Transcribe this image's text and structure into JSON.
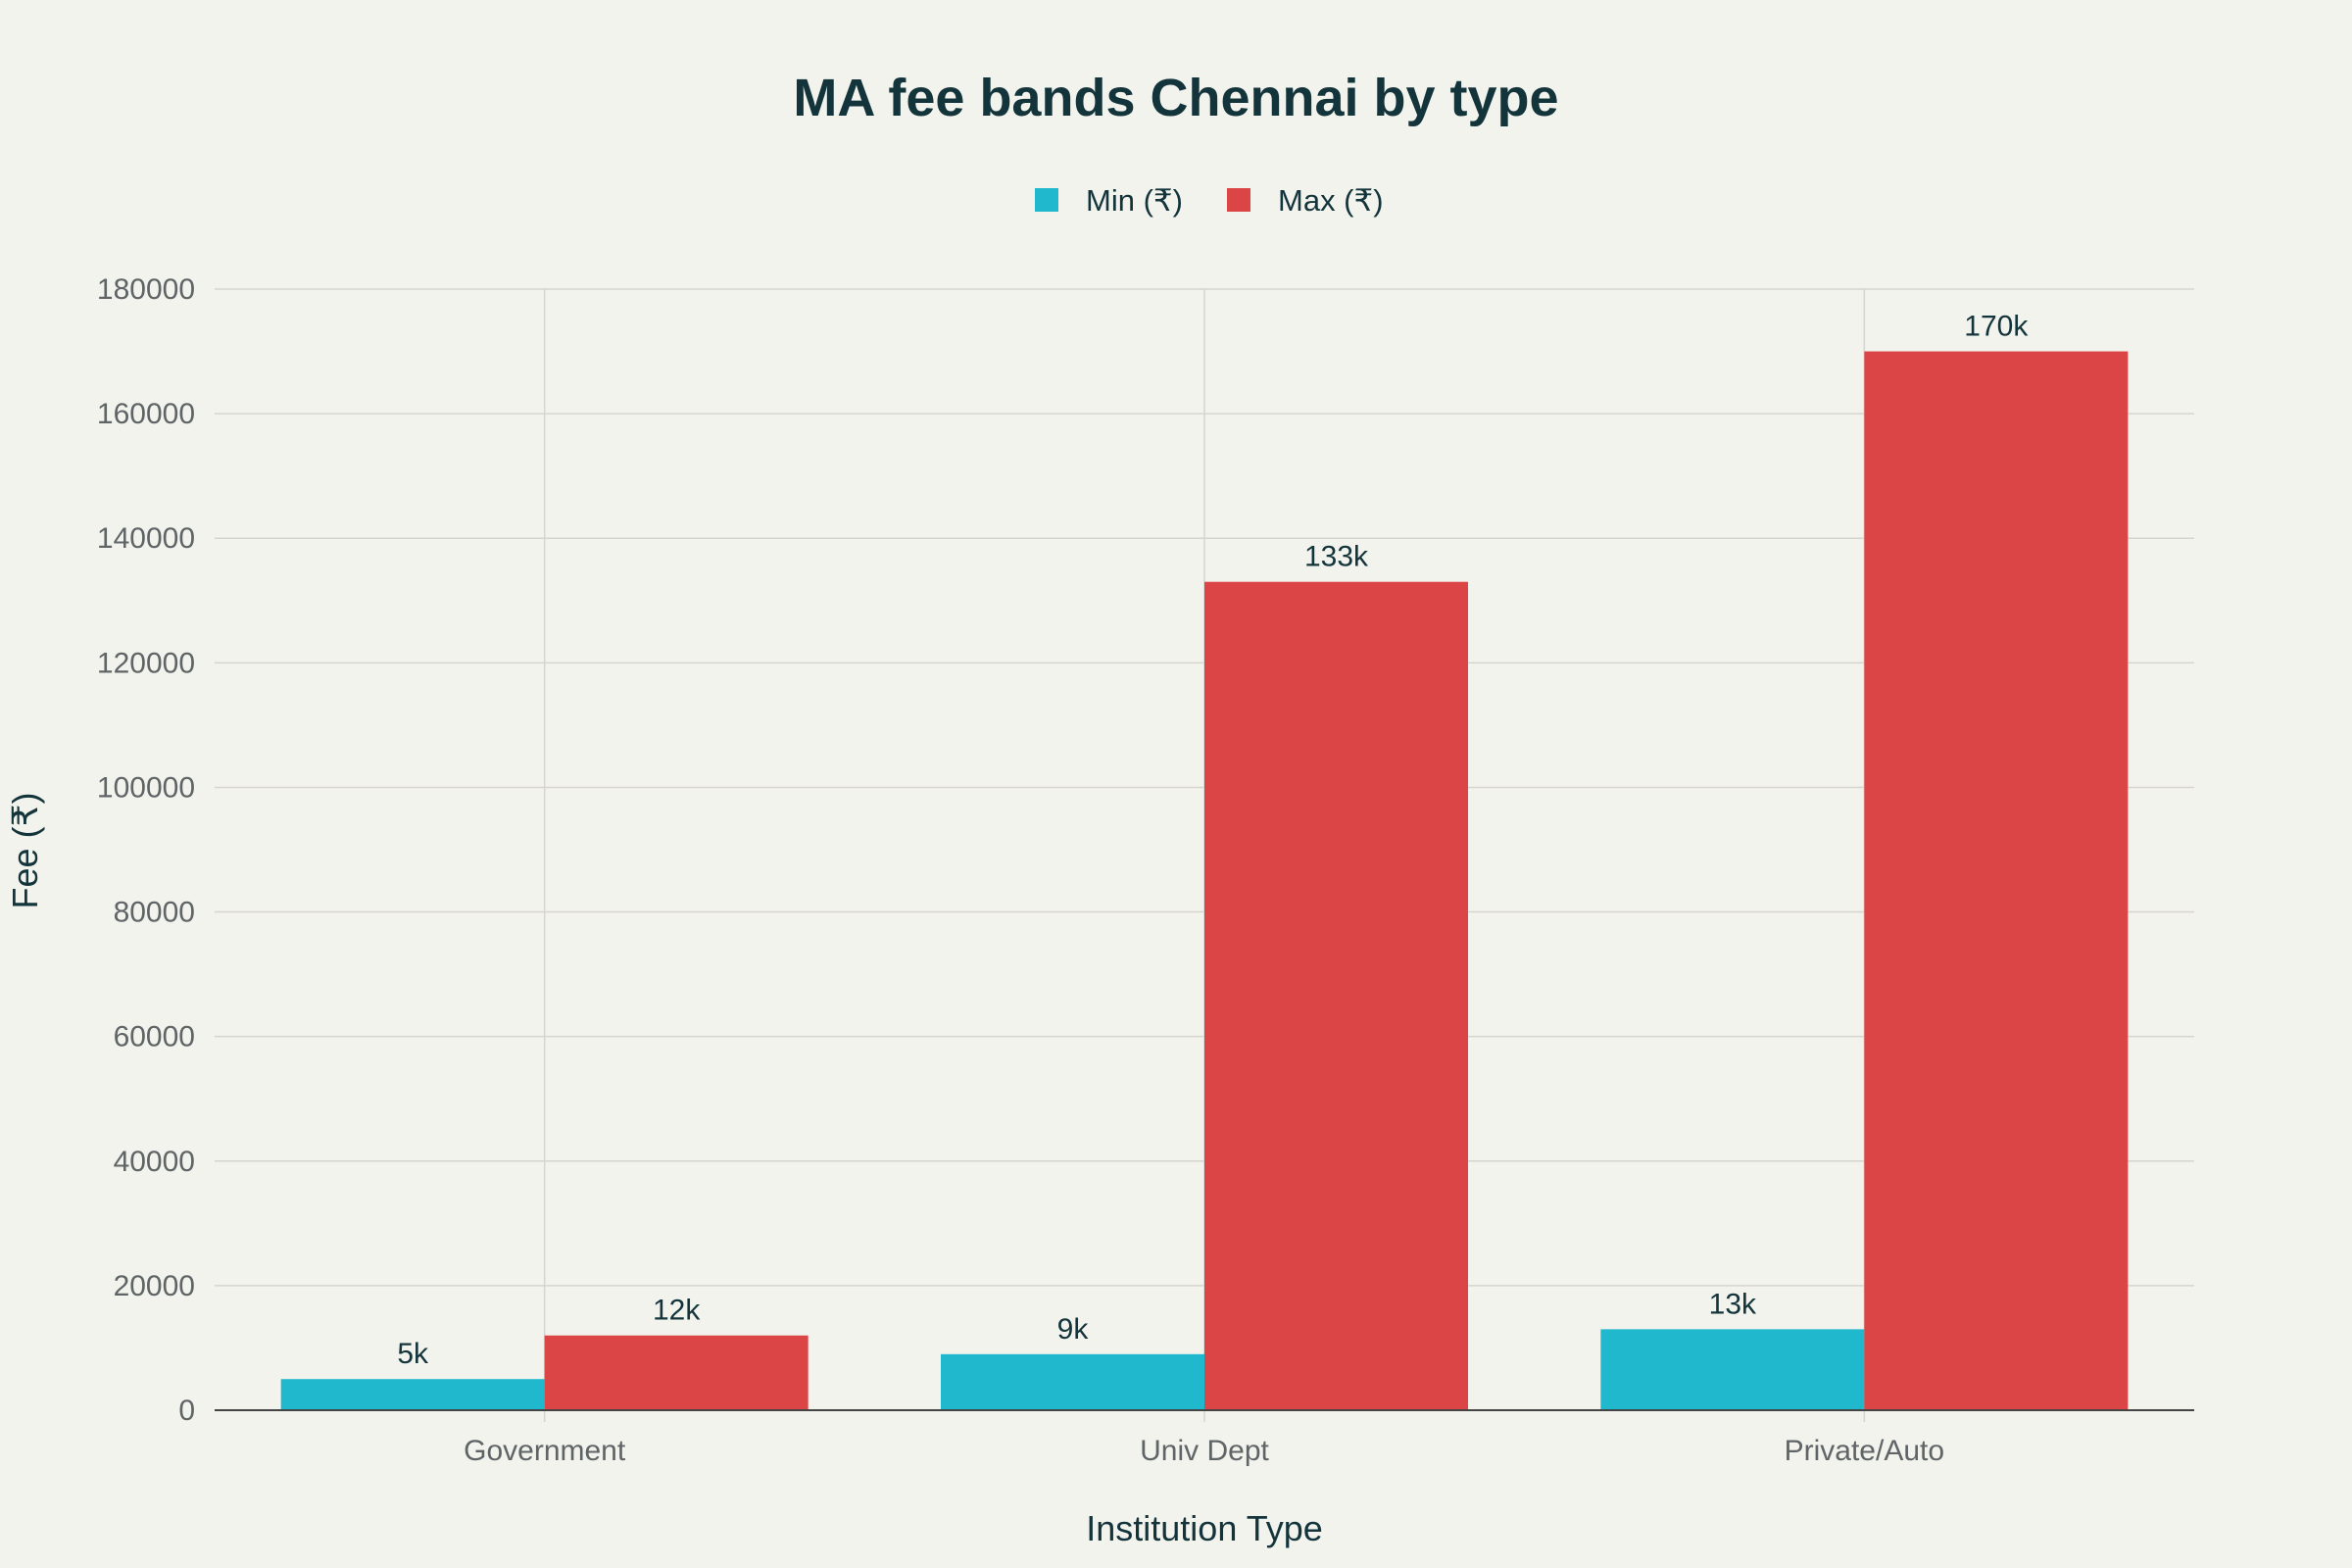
{
  "chart_data": {
    "type": "bar",
    "title": "MA fee bands Chennai by type",
    "xlabel": "Institution Type",
    "ylabel": "Fee (₹)",
    "categories": [
      "Government",
      "Univ Dept",
      "Private/Auto"
    ],
    "series": [
      {
        "name": "Min (₹)",
        "color": "#1fb8cd",
        "values": [
          5000,
          9000,
          13000
        ],
        "labels": [
          "5k",
          "9k",
          "13k"
        ]
      },
      {
        "name": "Max (₹)",
        "color": "#db4545",
        "values": [
          12000,
          133000,
          170000
        ],
        "labels": [
          "12k",
          "133k",
          "170k"
        ]
      }
    ],
    "ylim": [
      0,
      180000
    ],
    "yticks": [
      "0",
      "20000",
      "40000",
      "60000",
      "80000",
      "100000",
      "120000",
      "140000",
      "160000",
      "180000"
    ],
    "grid": true,
    "legend_position": "top-center"
  }
}
